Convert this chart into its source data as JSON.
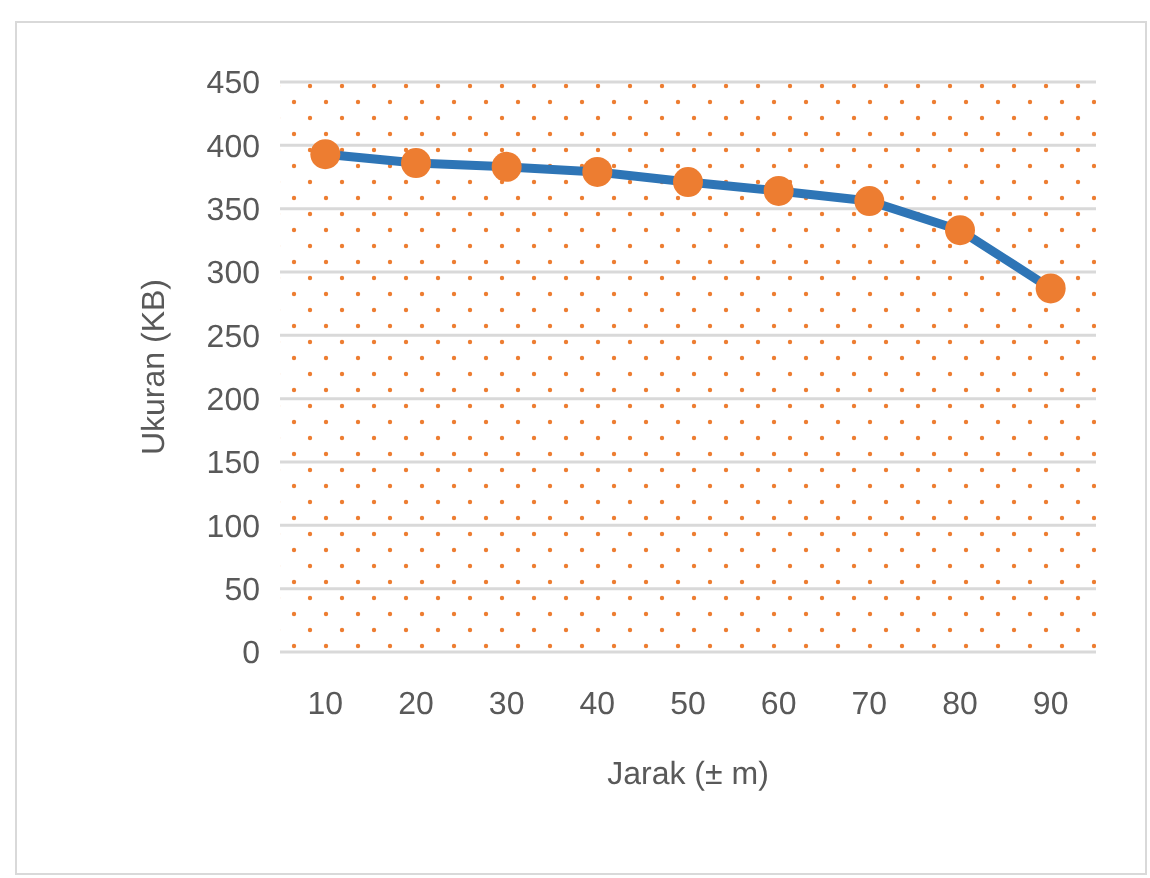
{
  "chart_data": {
    "type": "line",
    "xlabel": "Jarak (± m)",
    "ylabel": "Ukuran (KB)",
    "categories": [
      "10",
      "20",
      "30",
      "40",
      "50",
      "60",
      "70",
      "80",
      "90"
    ],
    "series": [
      {
        "color": "#2e75b6",
        "values": [
          393,
          386,
          383,
          379,
          371,
          364,
          356,
          333,
          287
        ]
      }
    ],
    "marker": "circle",
    "ylim": [
      0,
      450
    ],
    "yticks": [
      0,
      50,
      100,
      150,
      200,
      250,
      300,
      350,
      400,
      450
    ],
    "grid": "y"
  }
}
